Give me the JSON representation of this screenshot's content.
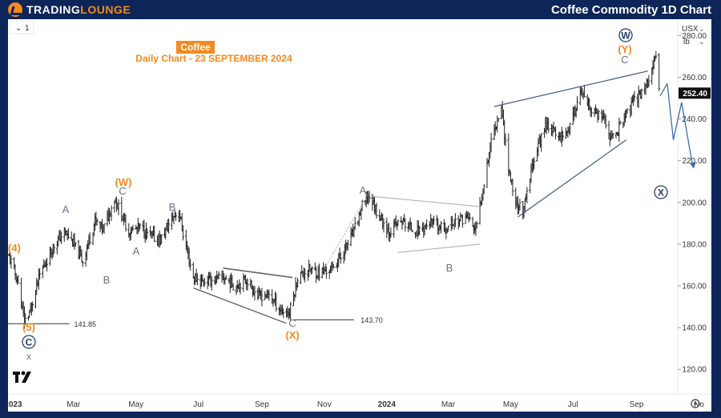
{
  "header": {
    "brand_part1": "TRADING",
    "brand_part2": "LOUNGE",
    "title": "Coffee Commodity 1D Chart"
  },
  "toolbar": {
    "interval_chevron": "⌄",
    "interval_value": "1",
    "currency": "USX",
    "unit": "lb",
    "settings_icon": "gear-icon",
    "tv_logo_text": "17"
  },
  "chart_data": {
    "type": "line",
    "title": "Coffee",
    "subtitle": "Daily Chart - 23 SEPTEMBER 2024",
    "xlabel": "",
    "ylabel": "",
    "x_ticks": [
      "2023",
      "Mar",
      "May",
      "Jul",
      "Sep",
      "Nov",
      "2024",
      "Mar",
      "May",
      "Jul",
      "Sep",
      "No"
    ],
    "y_ticks": [
      "120.00",
      "140.00",
      "160.00",
      "180.00",
      "200.00",
      "220.00",
      "240.00",
      "260.00",
      "280.00"
    ],
    "ylim": [
      112,
      284
    ],
    "last_price": "252.40",
    "series": [
      {
        "x": [
          "2022-12-28",
          "2023-01-05",
          "2023-01-12",
          "2023-01-18",
          "2023-01-27",
          "2023-02-08",
          "2023-02-20",
          "2023-02-28",
          "2023-03-10",
          "2023-03-22",
          "2023-03-30",
          "2023-04-10",
          "2023-04-17",
          "2023-04-24",
          "2023-05-05",
          "2023-05-15",
          "2023-05-25",
          "2023-06-05",
          "2023-06-12",
          "2023-06-16",
          "2023-06-26",
          "2023-07-05",
          "2023-07-17",
          "2023-07-26",
          "2023-08-05",
          "2023-08-17",
          "2023-08-28",
          "2023-09-08",
          "2023-09-20",
          "2023-09-28",
          "2023-10-06",
          "2023-10-16",
          "2023-10-27",
          "2023-11-07",
          "2023-11-17",
          "2023-11-30",
          "2023-12-08",
          "2023-12-15",
          "2023-12-22",
          "2024-01-03",
          "2024-01-15",
          "2024-01-30",
          "2024-02-12",
          "2024-02-26",
          "2024-03-08",
          "2024-03-20",
          "2024-03-28",
          "2024-04-05",
          "2024-04-12",
          "2024-04-22",
          "2024-04-29",
          "2024-05-06",
          "2024-05-14",
          "2024-05-24",
          "2024-06-05",
          "2024-06-17",
          "2024-06-28",
          "2024-07-08",
          "2024-07-18",
          "2024-07-30",
          "2024-08-08",
          "2024-08-20",
          "2024-08-30",
          "2024-09-10",
          "2024-09-16",
          "2024-09-20",
          "2024-09-23"
        ],
        "values": [
          174,
          163,
          143,
          148,
          165,
          178,
          186,
          181,
          172,
          191,
          187,
          202,
          194,
          186,
          188,
          184,
          182,
          192,
          196,
          185,
          164,
          162,
          163,
          164,
          160,
          163,
          155,
          156,
          148,
          147,
          164,
          168,
          166,
          168,
          174,
          186,
          198,
          203,
          196,
          186,
          191,
          186,
          190,
          187,
          191,
          193,
          186,
          210,
          230,
          246,
          216,
          200,
          196,
          222,
          238,
          231,
          236,
          253,
          244,
          240,
          230,
          240,
          249,
          256,
          262,
          270,
          252.4
        ]
      }
    ],
    "levels": [
      {
        "label": "141.85",
        "value": 141.85
      },
      {
        "label": "143.70",
        "value": 143.7
      }
    ],
    "wave_labels": {
      "left_4": "(4)",
      "left_5": "(5)",
      "circle_c": "C",
      "x_small": "x",
      "a1": "A",
      "b1": "B",
      "w_paren": "(W)",
      "c_w": "C",
      "a2": "A",
      "b2": "B",
      "c_x": "C",
      "x_paren": "(X)",
      "a3": "A",
      "b3": "B",
      "circle_w": "W",
      "y_paren": "(Y)",
      "c_y": "C",
      "circle_x": "X"
    },
    "colors": {
      "price": "#222222",
      "wave_label": "#6b7280",
      "orange": "#f28a1f",
      "navy": "#243b6b",
      "projection": "#3c6ea8",
      "channel": "#4a5f8a"
    }
  }
}
